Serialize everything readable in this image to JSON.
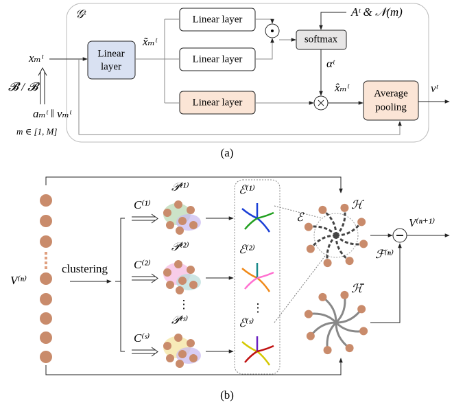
{
  "panel_a": {
    "title": "𝒢ᵗ",
    "input": "xₘᵗ",
    "linear_main": [
      "Linear",
      "layer"
    ],
    "hidden": "x̃ₘᵗ",
    "linear_layers": [
      "Linear layer",
      "Linear layer",
      "Linear layer"
    ],
    "softmax": "softmax",
    "mask": "Aᵗ & 𝒩(m)",
    "attention": "αᵗ",
    "weighted": "x̂ₘᵗ",
    "pooling": [
      "Average",
      "pooling"
    ],
    "output": "vᵗ",
    "source": "𝓑̃ / 𝓑",
    "concat": "aₘᵗ ‖ vₘᵗ",
    "range": "m ∈ [1, M]",
    "caption": "(a)"
  },
  "panel_b": {
    "input": "V⁽ⁿ⁾",
    "clustering": "clustering",
    "clusters": [
      {
        "c": "C⁽¹⁾",
        "p": "𝒫⁽¹⁾",
        "e": "ℰ⁽¹⁾"
      },
      {
        "c": "C⁽²⁾",
        "p": "𝒫⁽²⁾",
        "e": "ℰ⁽²⁾"
      },
      {
        "c": "C⁽ˢ⁾",
        "p": "𝒫⁽ˢ⁾",
        "e": "ℰ⁽ˢ⁾"
      }
    ],
    "edges": "ℰ",
    "hypergraph": "ℋ",
    "hypergraph_bar": "ℋ̄",
    "output": "V⁽ⁿ⁺¹⁾",
    "feature": "ℱ⁽ⁿ⁾",
    "caption": "(b)"
  }
}
